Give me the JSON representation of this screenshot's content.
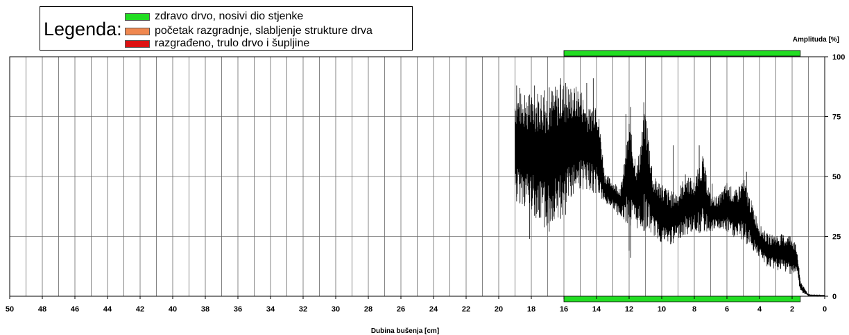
{
  "legend": {
    "title": "Legenda:",
    "items": [
      {
        "label": "zdravo drvo, nosivi dio stjenke",
        "color": "#22dd22"
      },
      {
        "label": "početak razgradnje, slabljenje strukture drva",
        "color": "#f08850"
      },
      {
        "label": "razgrađeno, trulo drvo i šupljine",
        "color": "#dd1111"
      }
    ]
  },
  "chart_data": {
    "type": "line",
    "xlabel": "Dubina bušenja [cm]",
    "ylabel": "Amplituda [%]",
    "xlim": [
      50,
      0
    ],
    "ylim": [
      0,
      100
    ],
    "x_ticks": [
      50,
      48,
      46,
      44,
      42,
      40,
      38,
      36,
      34,
      32,
      30,
      28,
      26,
      24,
      22,
      20,
      18,
      16,
      14,
      12,
      10,
      8,
      6,
      4,
      2,
      0
    ],
    "y_ticks": [
      100,
      75,
      50,
      25,
      0
    ],
    "y_tick_labels": [
      "100",
      "75",
      "50",
      "25",
      "0"
    ],
    "grid": true,
    "legend_placement": "top-left",
    "condition_bars": [
      {
        "class": "zdravo drvo, nosivi dio stjenke",
        "color": "#22dd22",
        "x_start": 16,
        "x_end": 1.5
      }
    ],
    "series": [
      {
        "color": "#000000",
        "envelope_x": [
          19,
          18.5,
          18,
          17.5,
          17,
          16.5,
          16,
          15.5,
          15,
          14.5,
          14,
          13.5,
          13,
          12.5,
          12,
          11.5,
          11,
          10.5,
          10,
          9.5,
          9,
          8.5,
          8,
          7.5,
          7,
          6.5,
          6,
          5.5,
          5,
          4.5,
          4,
          3.5,
          3,
          2.5,
          2,
          1.7,
          1.5,
          1.3,
          1.0,
          0.5,
          0
        ],
        "y_low": [
          40,
          38,
          36,
          30,
          28,
          33,
          32,
          42,
          44,
          45,
          42,
          38,
          37,
          32,
          30,
          28,
          27,
          25,
          22,
          21,
          24,
          25,
          27,
          26,
          27,
          28,
          26,
          24,
          23,
          20,
          16,
          12,
          11,
          10,
          9,
          9,
          2,
          1,
          0,
          0,
          0
        ],
        "y_high": [
          86,
          85,
          84,
          87,
          87,
          88,
          90,
          88,
          88,
          78,
          86,
          52,
          48,
          46,
          72,
          56,
          80,
          50,
          48,
          44,
          44,
          52,
          48,
          60,
          42,
          42,
          48,
          44,
          50,
          40,
          30,
          26,
          26,
          26,
          26,
          20,
          7,
          4,
          1,
          0.5,
          0.5
        ],
        "spikes": [
          {
            "x": 18.9,
            "y": 88
          },
          {
            "x": 18.7,
            "y": 87
          },
          {
            "x": 18.4,
            "y": 84
          },
          {
            "x": 17.8,
            "y": 88
          },
          {
            "x": 17.2,
            "y": 86
          },
          {
            "x": 16.2,
            "y": 91
          },
          {
            "x": 15.9,
            "y": 89
          },
          {
            "x": 14.6,
            "y": 89
          },
          {
            "x": 14.2,
            "y": 91
          },
          {
            "x": 12.2,
            "y": 76
          },
          {
            "x": 11.9,
            "y": 79
          },
          {
            "x": 11.1,
            "y": 81
          },
          {
            "x": 9.3,
            "y": 63
          },
          {
            "x": 7.7,
            "y": 63
          },
          {
            "x": 6.9,
            "y": 47
          },
          {
            "x": 4.8,
            "y": 52
          },
          {
            "x": 18.1,
            "y": 24
          },
          {
            "x": 16.9,
            "y": 27
          },
          {
            "x": 12.0,
            "y": 19
          },
          {
            "x": 11.9,
            "y": 16
          }
        ]
      }
    ]
  }
}
